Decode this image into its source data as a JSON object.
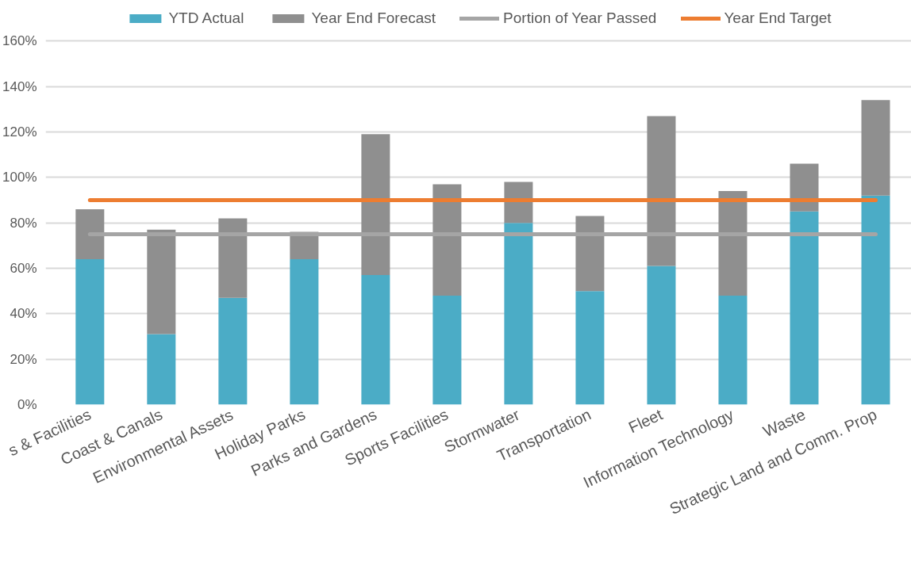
{
  "chart_data": {
    "type": "bar",
    "stacked": true,
    "categories": [
      "s & Facilities",
      "Coast & Canals",
      "Environmental Assets",
      "Holiday Parks",
      "Parks and Gardens",
      "Sports Facilities",
      "Stormwater",
      "Transportation",
      "Fleet",
      "Information Technology",
      "Waste",
      "Strategic Land and Comm. Prop"
    ],
    "series": [
      {
        "name": "YTD Actual",
        "color": "#4bacc6",
        "values": [
          64,
          31,
          47,
          64,
          57,
          48,
          80,
          50,
          61,
          48,
          85,
          92
        ]
      },
      {
        "name": "Year End Forecast",
        "color": "#8f8f8f",
        "values": [
          22,
          46,
          35,
          12,
          62,
          49,
          18,
          33,
          66,
          46,
          21,
          42
        ]
      },
      {
        "name": "Portion of Year Passed",
        "type": "line",
        "color": "#a5a5a5",
        "values": [
          75,
          75,
          75,
          75,
          75,
          75,
          75,
          75,
          75,
          75,
          75,
          75
        ]
      },
      {
        "name": "Year End Target",
        "type": "line",
        "color": "#ed7d31",
        "values": [
          90,
          90,
          90,
          90,
          90,
          90,
          90,
          90,
          90,
          90,
          90,
          90
        ]
      }
    ],
    "ylim": [
      0,
      160
    ],
    "yticks": [
      {
        "value": 0,
        "label": "0%"
      },
      {
        "value": 20,
        "label": "20%"
      },
      {
        "value": 40,
        "label": "40%"
      },
      {
        "value": 60,
        "label": "60%"
      },
      {
        "value": 80,
        "label": "80%"
      },
      {
        "value": 100,
        "label": "100%"
      },
      {
        "value": 120,
        "label": "120%"
      },
      {
        "value": 140,
        "label": "140%"
      },
      {
        "value": 160,
        "label": "160%"
      }
    ],
    "grid": "y",
    "legend": "top",
    "line_style": "solid"
  }
}
